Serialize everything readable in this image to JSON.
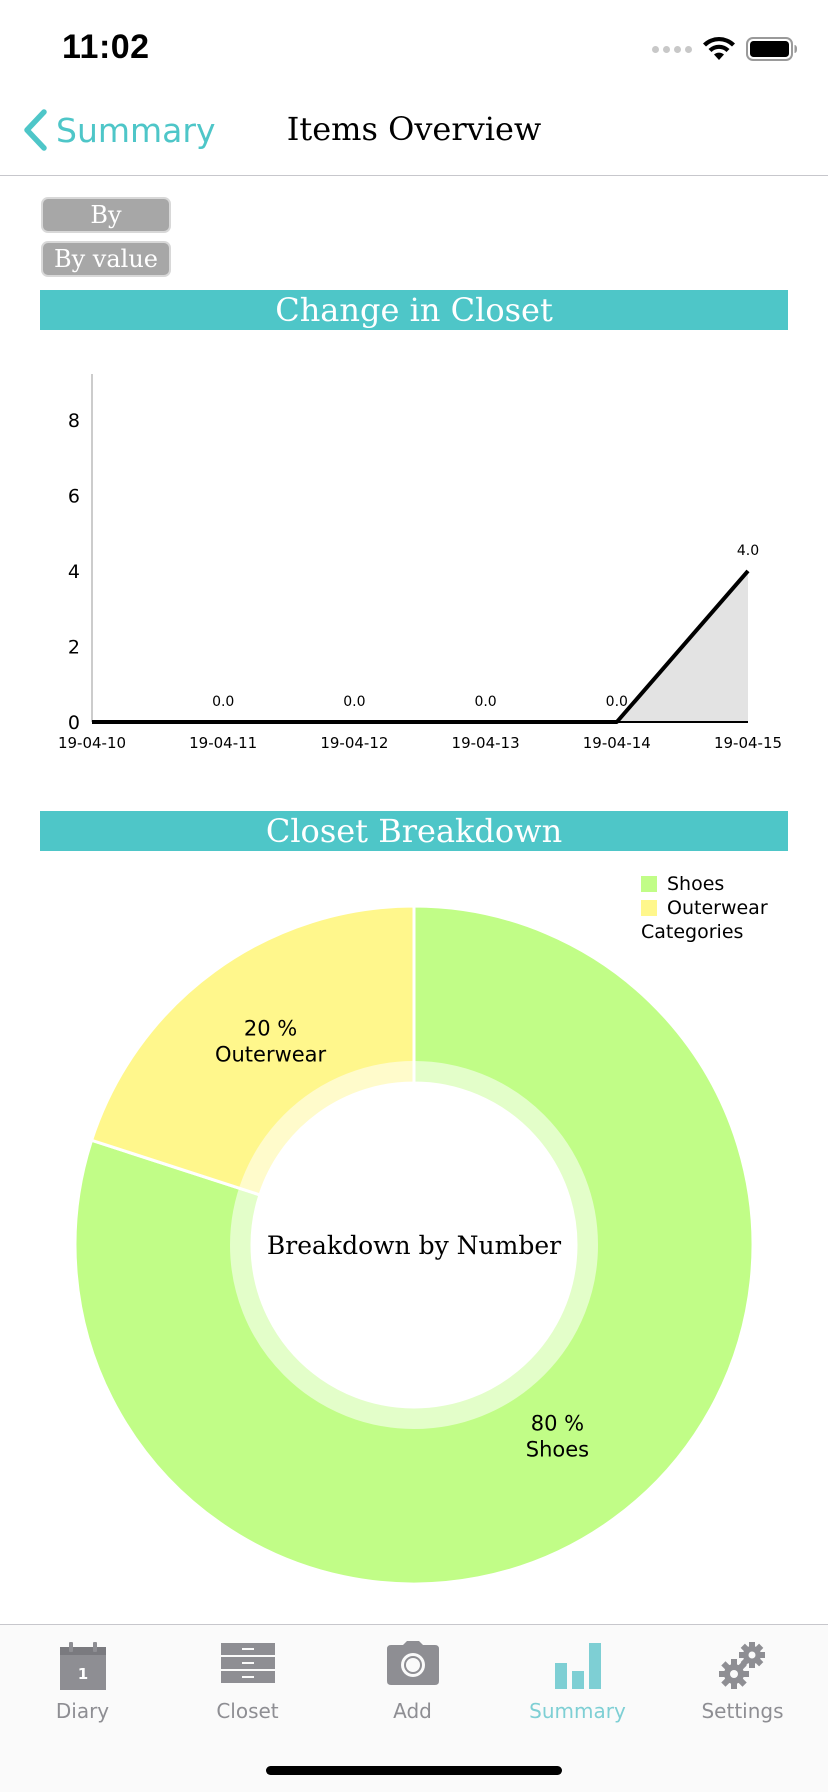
{
  "status_bar": {
    "time": "11:02"
  },
  "nav": {
    "back_label": "Summary",
    "title": "Items Overview"
  },
  "segments": {
    "by_number": "By number",
    "by_value": "By value"
  },
  "sections": {
    "change_title": "Change in Closet",
    "breakdown_title": "Closet Breakdown"
  },
  "colors": {
    "accent": "#4ec6c8",
    "shoes": "#c1fd87",
    "outerwear": "#fff78c",
    "area_fill": "#e3e3e3",
    "tab_inactive": "#8e8e93",
    "tab_active": "#7ecfd4"
  },
  "chart_data": [
    {
      "type": "line",
      "x": [
        "19-04-10",
        "19-04-11",
        "19-04-12",
        "19-04-13",
        "19-04-14",
        "19-04-15"
      ],
      "y_ticks": [
        "0",
        "2",
        "4",
        "6",
        "8"
      ],
      "ylim": [
        0,
        9
      ],
      "points": [
        {
          "x": "19-04-11",
          "y": 0.0,
          "label": "0.0"
        },
        {
          "x": "19-04-12",
          "y": 0.0,
          "label": "0.0"
        },
        {
          "x": "19-04-13",
          "y": 0.0,
          "label": "0.0"
        },
        {
          "x": "19-04-14",
          "y": 0.0,
          "label": "0.0"
        },
        {
          "x": "19-04-15",
          "y": 4.0,
          "label": "4.0"
        }
      ],
      "grid": false,
      "fill_under": true
    },
    {
      "type": "pie",
      "donut": true,
      "center_label": "Breakdown by Number",
      "slices": [
        {
          "name": "Shoes",
          "value": 80,
          "pct_label": "80 %",
          "color": "#c1fd87"
        },
        {
          "name": "Outerwear",
          "value": 20,
          "pct_label": "20 %",
          "color": "#fff78c"
        }
      ],
      "legend": {
        "entries": [
          "Shoes",
          "Outerwear"
        ],
        "caption": "Categories",
        "position": "top-right"
      }
    }
  ],
  "tabs": [
    {
      "label": "Diary",
      "icon": "calendar-icon",
      "calendar_day": "1",
      "active": false
    },
    {
      "label": "Closet",
      "icon": "dresser-icon",
      "active": false
    },
    {
      "label": "Add",
      "icon": "camera-icon",
      "active": false
    },
    {
      "label": "Summary",
      "icon": "bar-chart-icon",
      "active": true
    },
    {
      "label": "Settings",
      "icon": "gears-icon",
      "active": false
    }
  ]
}
